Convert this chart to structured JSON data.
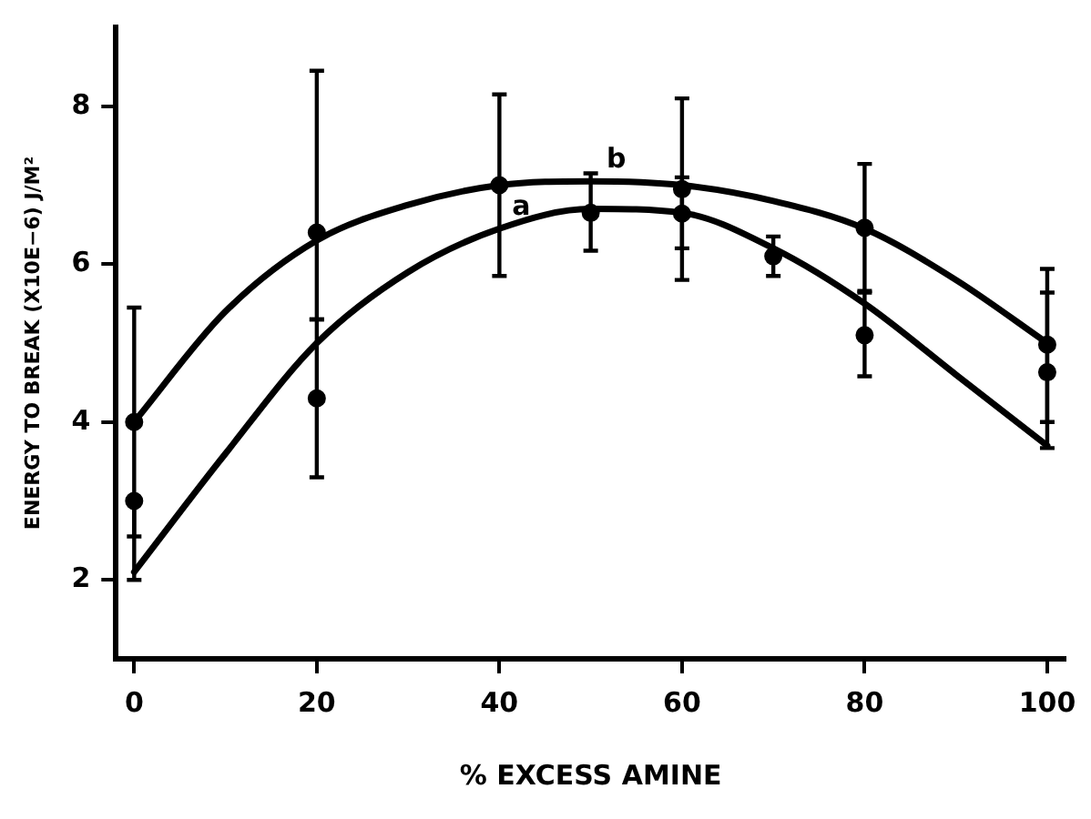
{
  "chart_data": {
    "type": "scatter",
    "xlabel": "% EXCESS AMINE",
    "ylabel": "ENERGY TO BREAK (X10E−6) J/M²",
    "xlim": [
      -2,
      102
    ],
    "xticks": [
      0,
      20,
      40,
      60,
      80,
      100
    ],
    "ylim": [
      1,
      9
    ],
    "yticks": [
      2,
      4,
      6,
      8
    ],
    "grid": false,
    "legend": false,
    "marker": "circle",
    "series": [
      {
        "color": "#000000",
        "x": [
          0,
          20,
          40,
          60,
          80,
          100
        ],
        "values": [
          4.0,
          6.4,
          7.0,
          6.95,
          6.46,
          4.98
        ],
        "errors": [
          [
            2.55,
            5.45
          ],
          [
            5.3,
            8.45
          ],
          [
            5.85,
            8.15
          ],
          [
            5.8,
            8.1
          ],
          [
            5.66,
            7.27
          ],
          [
            4.0,
            5.94
          ]
        ]
      },
      {
        "color": "#000000",
        "x": [
          0,
          20,
          50,
          60,
          70,
          80,
          100
        ],
        "values": [
          3.0,
          4.3,
          6.65,
          6.64,
          6.1,
          5.1,
          4.63
        ],
        "errors": [
          [
            2.0,
            3.0
          ],
          [
            3.3,
            5.3
          ],
          [
            6.17,
            7.15
          ],
          [
            6.2,
            7.1
          ],
          [
            5.85,
            6.35
          ],
          [
            4.58,
            5.64
          ],
          [
            3.67,
            5.64
          ]
        ]
      },
      {
        "type": "line",
        "name": "b",
        "color": "#000000",
        "marker": "none",
        "x": [
          0,
          10,
          20,
          30,
          40,
          50,
          60,
          70,
          80,
          90,
          100
        ],
        "values": [
          4.0,
          5.4,
          6.3,
          6.75,
          7.0,
          7.05,
          7.0,
          6.8,
          6.45,
          5.8,
          5.0
        ]
      },
      {
        "type": "line",
        "name": "a",
        "color": "#000000",
        "marker": "none",
        "x": [
          0,
          10,
          20,
          30,
          40,
          50,
          60,
          70,
          80,
          90,
          100
        ],
        "values": [
          2.1,
          3.6,
          5.0,
          5.9,
          6.45,
          6.7,
          6.65,
          6.2,
          5.5,
          4.6,
          3.7
        ]
      }
    ]
  }
}
